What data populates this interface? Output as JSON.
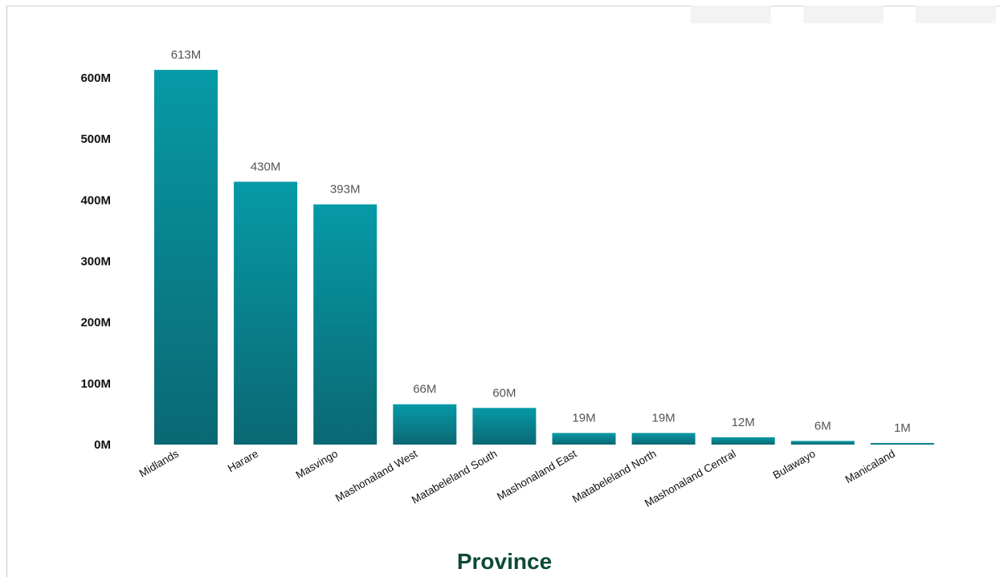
{
  "colors": {
    "bar_top": "#069aa6",
    "bar_bottom": "#0b6873",
    "axis_title": "#0e4a33",
    "data_label": "#555555"
  },
  "chart_data": {
    "type": "bar",
    "xlabel": "Province",
    "ylabel": "",
    "ylim": [
      0,
      640
    ],
    "y_ticks": [
      0,
      100,
      200,
      300,
      400,
      500,
      600
    ],
    "y_tick_labels": [
      "0M",
      "100M",
      "200M",
      "300M",
      "400M",
      "500M",
      "600M"
    ],
    "categories": [
      "Midlands",
      "Harare",
      "Masvingo",
      "Mashonaland West",
      "Matabeleland South",
      "Mashonaland East",
      "Matabeleland North",
      "Mashonaland Central",
      "Bulawayo",
      "Manicaland"
    ],
    "values": [
      613,
      430,
      393,
      66,
      60,
      19,
      19,
      12,
      6,
      1
    ],
    "data_labels": [
      "613M",
      "430M",
      "393M",
      "66M",
      "60M",
      "19M",
      "19M",
      "12M",
      "6M",
      "1M"
    ],
    "grid": false,
    "legend": "none"
  }
}
